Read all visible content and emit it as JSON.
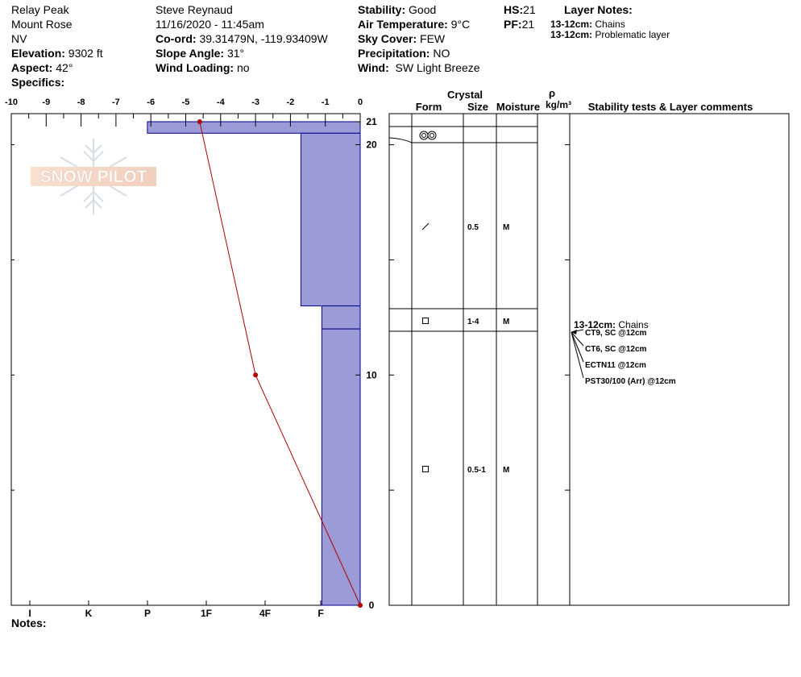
{
  "header": {
    "location": "Relay Peak",
    "region": "Mount Rose",
    "state": "NV",
    "elevation_label": "Elevation:",
    "elevation": "9302 ft",
    "aspect_label": "Aspect:",
    "aspect": "42°",
    "specifics_label": "Specifics:",
    "observer": "Steve Reynaud",
    "datetime": "11/16/2020 - 11:45am",
    "coord_label": "Co-ord:",
    "coord": "39.31479N, -119.93409W",
    "slope_label": "Slope Angle:",
    "slope": "31°",
    "wind_loading_label": "Wind Loading:",
    "wind_loading": "no",
    "stability_label": "Stability:",
    "stability": "Good",
    "air_temp_label": "Air Temperature:",
    "air_temp": "9°C",
    "sky_label": "Sky Cover:",
    "sky": "FEW",
    "precip_label": "Precipitation:",
    "precip": "NO",
    "wind_label": "Wind:",
    "wind": "SW Light Breeze",
    "hs_label": "HS:",
    "hs": "21",
    "pf_label": "PF:",
    "pf": "21",
    "layer_notes_title": "Layer Notes:",
    "layer_notes": [
      {
        "depth": "13-12cm:",
        "text": "Chains"
      },
      {
        "depth": "13-12cm:",
        "text": "Problematic layer"
      }
    ]
  },
  "watermark": "SNOW PILOT",
  "table_headers": {
    "crystal": "Crystal",
    "form": "Form",
    "size": "Size",
    "moisture": "Moisture",
    "rho": "ρ",
    "density_unit": "kg/m³",
    "comments": "Stability tests & Layer comments"
  },
  "layers": [
    {
      "top": 21,
      "bottom": 20.5,
      "form": "rounds-icon",
      "size": "",
      "moisture": ""
    },
    {
      "top": 20.5,
      "bottom": 13,
      "form": "slash-icon",
      "size": "0.5",
      "moisture": "M"
    },
    {
      "top": 13,
      "bottom": 12,
      "form": "square-icon",
      "size": "1-4",
      "moisture": "M"
    },
    {
      "top": 12,
      "bottom": 0,
      "form": "square-icon",
      "size": "0.5-1",
      "moisture": "M"
    }
  ],
  "layer_comment": {
    "depth": "13-12cm:",
    "text": "Chains"
  },
  "stability_tests": [
    "CT9, SC @12cm",
    "CT6, SC @12cm",
    "ECTN11 @12cm",
    "PST30/100 (Arr) @12cm"
  ],
  "notes_label": "Notes:",
  "chart_data": {
    "type": "snow-profile",
    "temperature_axis": {
      "ticks": [
        -10,
        -9,
        -8,
        -7,
        -6,
        -5,
        -4,
        -3,
        -2,
        -1,
        0
      ],
      "range": [
        -10,
        0
      ]
    },
    "depth_axis": {
      "range": [
        0,
        21
      ],
      "labels": [
        0,
        10,
        20,
        21
      ]
    },
    "hardness_axis": {
      "labels": [
        "I",
        "K",
        "P",
        "1F",
        "4F",
        "F"
      ]
    },
    "hardness_layers": [
      {
        "top": 21,
        "bottom": 20.5,
        "hardness_temp_equiv": -6.1
      },
      {
        "top": 20.5,
        "bottom": 13,
        "hardness_temp_equiv": -1.7
      },
      {
        "top": 13,
        "bottom": 12,
        "hardness_temp_equiv": -1.1
      },
      {
        "top": 12,
        "bottom": 0,
        "hardness_temp_equiv": -1.1
      }
    ],
    "temperature_profile": [
      {
        "depth": 21,
        "temp": -4.6
      },
      {
        "depth": 10,
        "temp": -3.0
      },
      {
        "depth": 0,
        "temp": 0.0
      }
    ],
    "colors": {
      "hardness_fill": "#9b9bd8",
      "hardness_stroke": "#00008b",
      "temperature_line": "#b00000",
      "grid": "#000000"
    }
  }
}
